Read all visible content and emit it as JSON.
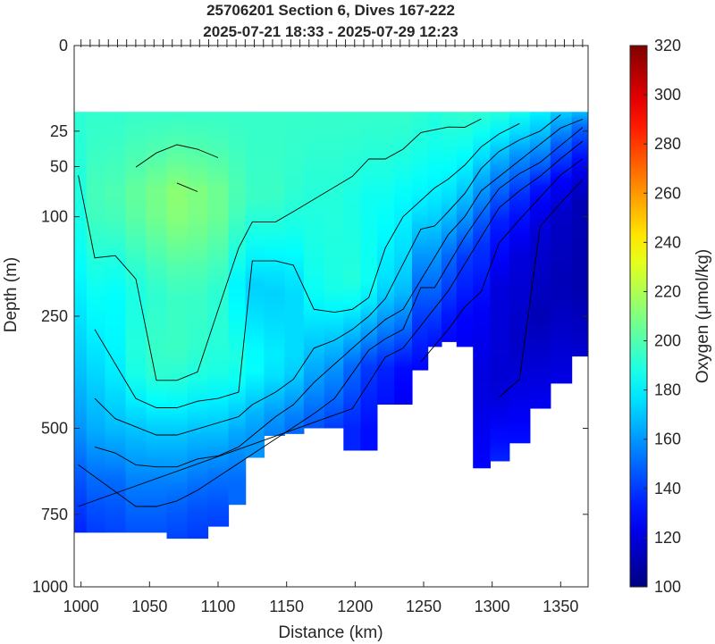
{
  "chart_data": {
    "type": "heatmap",
    "title": "25706201 Section 6, Dives 167-222",
    "subtitle": "2025-07-21 18:33 - 2025-07-29 12:23",
    "xlabel": "Distance (km)",
    "ylabel": "Depth (m)",
    "colorbar_label": "Oxygen (μmol/kg)",
    "xlim": [
      995,
      1370
    ],
    "ylim": [
      0,
      1000
    ],
    "y_scale": "sqrt",
    "y_reversed": true,
    "clim": [
      100,
      320
    ],
    "x_ticks": [
      "1000",
      "1050",
      "1100",
      "1150",
      "1200",
      "1250",
      "1300",
      "1350"
    ],
    "y_ticks": [
      "0",
      "25",
      "50",
      "100",
      "250",
      "500",
      "750",
      "1000"
    ],
    "colorbar_ticks": [
      "100",
      "120",
      "140",
      "160",
      "180",
      "200",
      "220",
      "240",
      "260",
      "280",
      "300",
      "320"
    ],
    "colormap": "jet",
    "data_top_depth": 15,
    "grid": false,
    "dive_tick_count": 56,
    "dive_tick_start_km": 1000,
    "dive_tick_end_km": 1366,
    "profiles": [
      {
        "x": 998,
        "bottom": 810,
        "o2": [
          [
            15,
            192
          ],
          [
            100,
            188
          ],
          [
            200,
            180
          ],
          [
            350,
            170
          ],
          [
            500,
            160
          ],
          [
            650,
            145
          ],
          [
            800,
            135
          ]
        ]
      },
      {
        "x": 1010,
        "bottom": 810,
        "o2": [
          [
            15,
            193
          ],
          [
            80,
            198
          ],
          [
            200,
            185
          ],
          [
            350,
            175
          ],
          [
            500,
            165
          ],
          [
            650,
            150
          ],
          [
            800,
            140
          ]
        ]
      },
      {
        "x": 1025,
        "bottom": 810,
        "o2": [
          [
            15,
            193
          ],
          [
            80,
            200
          ],
          [
            200,
            183
          ],
          [
            350,
            180
          ],
          [
            500,
            168
          ],
          [
            650,
            150
          ],
          [
            800,
            142
          ]
        ]
      },
      {
        "x": 1040,
        "bottom": 810,
        "o2": [
          [
            15,
            194
          ],
          [
            80,
            205
          ],
          [
            200,
            188
          ],
          [
            350,
            190
          ],
          [
            500,
            170
          ],
          [
            650,
            155
          ],
          [
            800,
            145
          ]
        ]
      },
      {
        "x": 1055,
        "bottom": 810,
        "o2": [
          [
            15,
            194
          ],
          [
            80,
            210
          ],
          [
            200,
            192
          ],
          [
            350,
            195
          ],
          [
            500,
            172
          ],
          [
            650,
            155
          ],
          [
            800,
            145
          ]
        ]
      },
      {
        "x": 1070,
        "bottom": 830,
        "o2": [
          [
            15,
            194
          ],
          [
            80,
            215
          ],
          [
            200,
            195
          ],
          [
            350,
            195
          ],
          [
            500,
            172
          ],
          [
            650,
            155
          ],
          [
            800,
            142
          ]
        ]
      },
      {
        "x": 1085,
        "bottom": 830,
        "o2": [
          [
            15,
            194
          ],
          [
            80,
            212
          ],
          [
            200,
            195
          ],
          [
            350,
            192
          ],
          [
            500,
            170
          ],
          [
            650,
            152
          ],
          [
            800,
            140
          ]
        ]
      },
      {
        "x": 1100,
        "bottom": 790,
        "o2": [
          [
            15,
            194
          ],
          [
            80,
            208
          ],
          [
            200,
            192
          ],
          [
            350,
            190
          ],
          [
            500,
            170
          ],
          [
            650,
            150
          ],
          [
            800,
            140
          ]
        ]
      },
      {
        "x": 1115,
        "bottom": 720,
        "o2": [
          [
            15,
            194
          ],
          [
            80,
            200
          ],
          [
            200,
            180
          ],
          [
            350,
            190
          ],
          [
            500,
            165
          ],
          [
            650,
            150
          ]
        ]
      },
      {
        "x": 1125,
        "bottom": 580,
        "o2": [
          [
            15,
            194
          ],
          [
            80,
            195
          ],
          [
            200,
            172
          ],
          [
            350,
            185
          ],
          [
            500,
            160
          ]
        ]
      },
      {
        "x": 1142,
        "bottom": 520,
        "o2": [
          [
            15,
            194
          ],
          [
            80,
            195
          ],
          [
            200,
            172
          ],
          [
            350,
            180
          ],
          [
            500,
            155
          ]
        ]
      },
      {
        "x": 1155,
        "bottom": 515,
        "o2": [
          [
            15,
            194
          ],
          [
            80,
            192
          ],
          [
            200,
            175
          ],
          [
            350,
            175
          ],
          [
            500,
            150
          ]
        ]
      },
      {
        "x": 1170,
        "bottom": 500,
        "o2": [
          [
            15,
            194
          ],
          [
            80,
            190
          ],
          [
            200,
            185
          ],
          [
            350,
            165
          ],
          [
            500,
            145
          ]
        ]
      },
      {
        "x": 1185,
        "bottom": 500,
        "o2": [
          [
            15,
            194
          ],
          [
            80,
            190
          ],
          [
            200,
            188
          ],
          [
            350,
            160
          ],
          [
            500,
            140
          ]
        ]
      },
      {
        "x": 1198,
        "bottom": 560,
        "o2": [
          [
            15,
            194
          ],
          [
            80,
            188
          ],
          [
            200,
            190
          ],
          [
            350,
            150
          ],
          [
            500,
            135
          ]
        ]
      },
      {
        "x": 1210,
        "bottom": 560,
        "o2": [
          [
            15,
            194
          ],
          [
            80,
            185
          ],
          [
            200,
            185
          ],
          [
            350,
            140
          ],
          [
            500,
            130
          ]
        ]
      },
      {
        "x": 1222,
        "bottom": 440,
        "o2": [
          [
            15,
            194
          ],
          [
            80,
            185
          ],
          [
            200,
            175
          ],
          [
            350,
            135
          ],
          [
            450,
            130
          ]
        ]
      },
      {
        "x": 1235,
        "bottom": 440,
        "o2": [
          [
            15,
            194
          ],
          [
            80,
            182
          ],
          [
            200,
            170
          ],
          [
            350,
            130
          ],
          [
            450,
            125
          ]
        ]
      },
      {
        "x": 1248,
        "bottom": 360,
        "o2": [
          [
            15,
            192
          ],
          [
            80,
            180
          ],
          [
            150,
            160
          ],
          [
            250,
            140
          ],
          [
            360,
            128
          ]
        ]
      },
      {
        "x": 1258,
        "bottom": 310,
        "o2": [
          [
            15,
            190
          ],
          [
            80,
            178
          ],
          [
            150,
            160
          ],
          [
            250,
            140
          ],
          [
            310,
            130
          ]
        ]
      },
      {
        "x": 1268,
        "bottom": 300,
        "o2": [
          [
            15,
            192
          ],
          [
            80,
            175
          ],
          [
            150,
            150
          ],
          [
            250,
            132
          ],
          [
            300,
            128
          ]
        ]
      },
      {
        "x": 1280,
        "bottom": 310,
        "o2": [
          [
            15,
            193
          ],
          [
            80,
            168
          ],
          [
            150,
            140
          ],
          [
            250,
            128
          ],
          [
            310,
            125
          ]
        ]
      },
      {
        "x": 1292,
        "bottom": 610,
        "o2": [
          [
            15,
            192
          ],
          [
            60,
            165
          ],
          [
            120,
            140
          ],
          [
            250,
            125
          ],
          [
            400,
            120
          ],
          [
            610,
            128
          ]
        ]
      },
      {
        "x": 1305,
        "bottom": 590,
        "o2": [
          [
            15,
            190
          ],
          [
            50,
            160
          ],
          [
            100,
            135
          ],
          [
            200,
            120
          ],
          [
            400,
            118
          ],
          [
            590,
            135
          ]
        ]
      },
      {
        "x": 1320,
        "bottom": 540,
        "o2": [
          [
            15,
            186
          ],
          [
            40,
            160
          ],
          [
            80,
            135
          ],
          [
            150,
            120
          ],
          [
            300,
            115
          ],
          [
            540,
            130
          ]
        ]
      },
      {
        "x": 1335,
        "bottom": 450,
        "o2": [
          [
            15,
            180
          ],
          [
            35,
            160
          ],
          [
            70,
            130
          ],
          [
            120,
            118
          ],
          [
            250,
            112
          ],
          [
            450,
            125
          ]
        ]
      },
      {
        "x": 1350,
        "bottom": 390,
        "o2": [
          [
            15,
            172
          ],
          [
            30,
            150
          ],
          [
            60,
            128
          ],
          [
            100,
            115
          ],
          [
            200,
            112
          ],
          [
            390,
            122
          ]
        ]
      },
      {
        "x": 1366,
        "bottom": 330,
        "o2": [
          [
            15,
            168
          ],
          [
            25,
            145
          ],
          [
            50,
            125
          ],
          [
            80,
            112
          ],
          [
            200,
            110
          ],
          [
            330,
            118
          ]
        ]
      }
    ]
  }
}
